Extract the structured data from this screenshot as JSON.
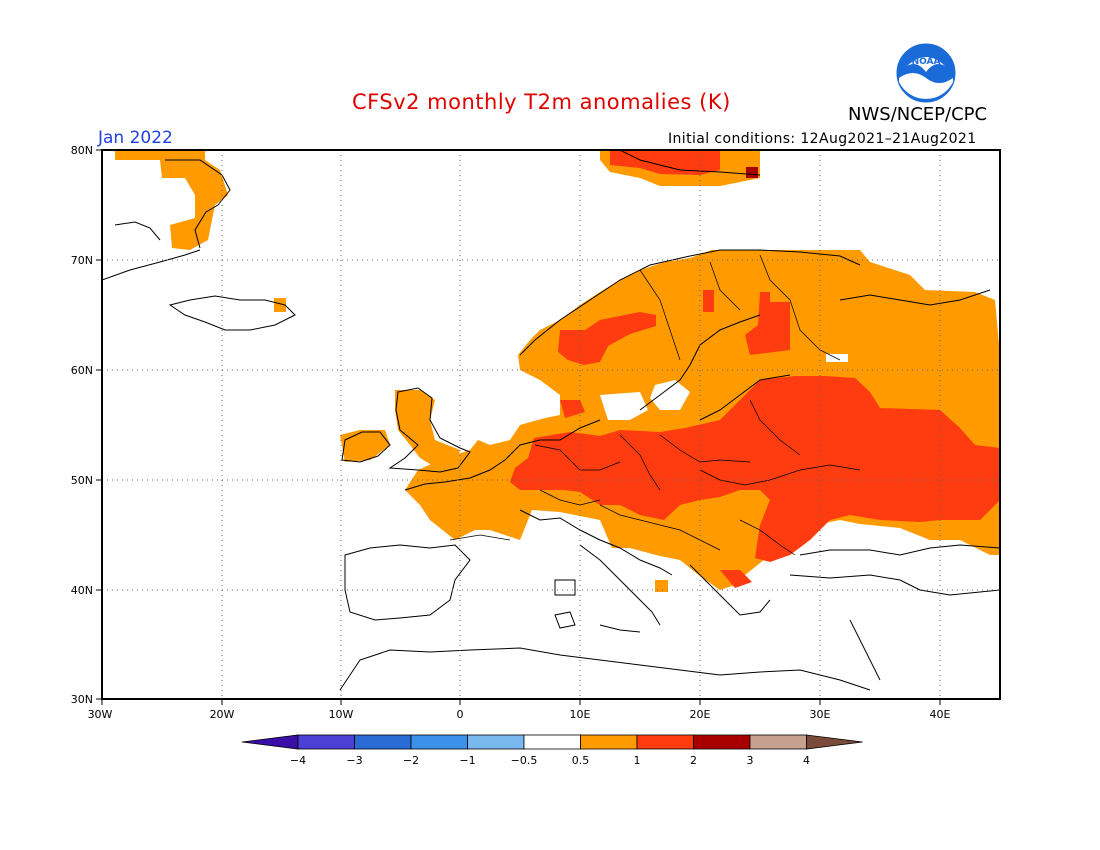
{
  "title": "CFSv2 monthly T2m anomalies (K)",
  "month": "Jan 2022",
  "initial_conditions": "Initial conditions: 12Aug2021–21Aug2021",
  "agency": "NWS/NCEP/CPC",
  "logo_icon": "noaa-logo-icon",
  "logo_text": "NOAA",
  "map": {
    "lat_labels": [
      "80N",
      "70N",
      "60N",
      "50N",
      "40N",
      "30N"
    ],
    "lon_labels": [
      "30W",
      "20W",
      "10W",
      "0",
      "10E",
      "20E",
      "30E",
      "40E"
    ],
    "lat_range": [
      30,
      80
    ],
    "lon_range": [
      -30,
      45
    ],
    "grid": "dotted"
  },
  "colorbar": {
    "labels": [
      "−4",
      "−3",
      "−2",
      "−1",
      "−0.5",
      "0.5",
      "1",
      "2",
      "3",
      "4"
    ],
    "colors": [
      "#3a0fa8",
      "#4b3fd4",
      "#2a6ad4",
      "#3c92e8",
      "#7ab8f0",
      "#ffffff",
      "#ff9a00",
      "#ff3c10",
      "#a80000",
      "#c8a090",
      "#7a4a3a"
    ]
  },
  "legend_colors": {
    "warm": "#ff9a00",
    "hot": "#ff3c10",
    "very_hot": "#a80000"
  }
}
